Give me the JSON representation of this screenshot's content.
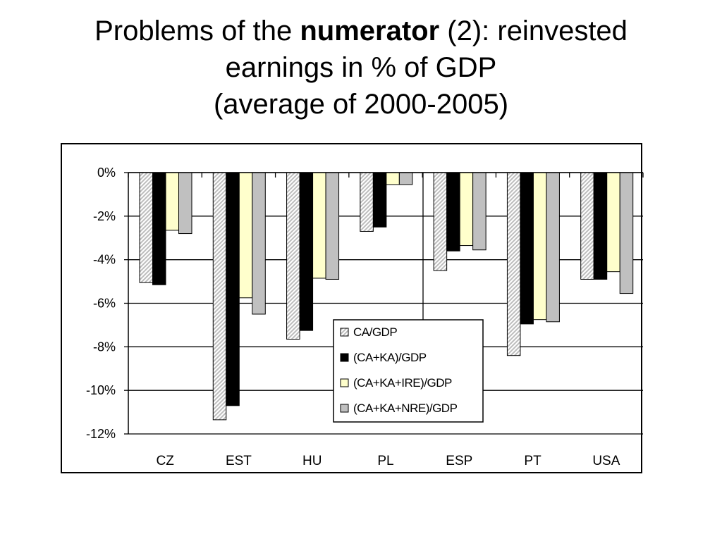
{
  "slide": {
    "title_line1_before": "Problems of the ",
    "title_line1_bold": "numerator",
    "title_line1_after": " (2): reinvested",
    "title_line2": "earnings in % of GDP",
    "title_line3": "(average of 2000-2005)"
  },
  "chart_data": {
    "type": "bar",
    "title": "",
    "xlabel": "",
    "ylabel": "",
    "categories": [
      "CZ",
      "EST",
      "HU",
      "PL",
      "ESP",
      "PT",
      "USA"
    ],
    "ylim": [
      -12,
      0
    ],
    "yticks": [
      0,
      -2,
      -4,
      -6,
      -8,
      -10,
      -12
    ],
    "ytick_labels": [
      "0%",
      "-2%",
      "-4%",
      "-6%",
      "-8%",
      "-10%",
      "-12%"
    ],
    "grid": true,
    "legend_position": "center-bottom",
    "series": [
      {
        "name": "CA/GDP",
        "values": [
          -5.05,
          -11.35,
          -7.65,
          -2.7,
          -4.5,
          -8.4,
          -4.9
        ],
        "color": "#d8d8d8",
        "pattern": "hatched"
      },
      {
        "name": "(CA+KA)/GDP",
        "values": [
          -5.15,
          -10.7,
          -7.25,
          -2.5,
          -3.6,
          -6.95,
          -4.9
        ],
        "color": "#000000",
        "pattern": "solid"
      },
      {
        "name": "(CA+KA+IRE)/GDP",
        "values": [
          -2.65,
          -5.75,
          -4.85,
          -0.55,
          -3.35,
          -6.75,
          -4.55
        ],
        "color": "#ffffcc",
        "pattern": "solid"
      },
      {
        "name": "(CA+KA+NRE)/GDP",
        "values": [
          -2.8,
          -6.5,
          -4.9,
          -0.55,
          -3.55,
          -6.85,
          -5.55
        ],
        "color": "#c0c0c0",
        "pattern": "solid"
      }
    ]
  }
}
